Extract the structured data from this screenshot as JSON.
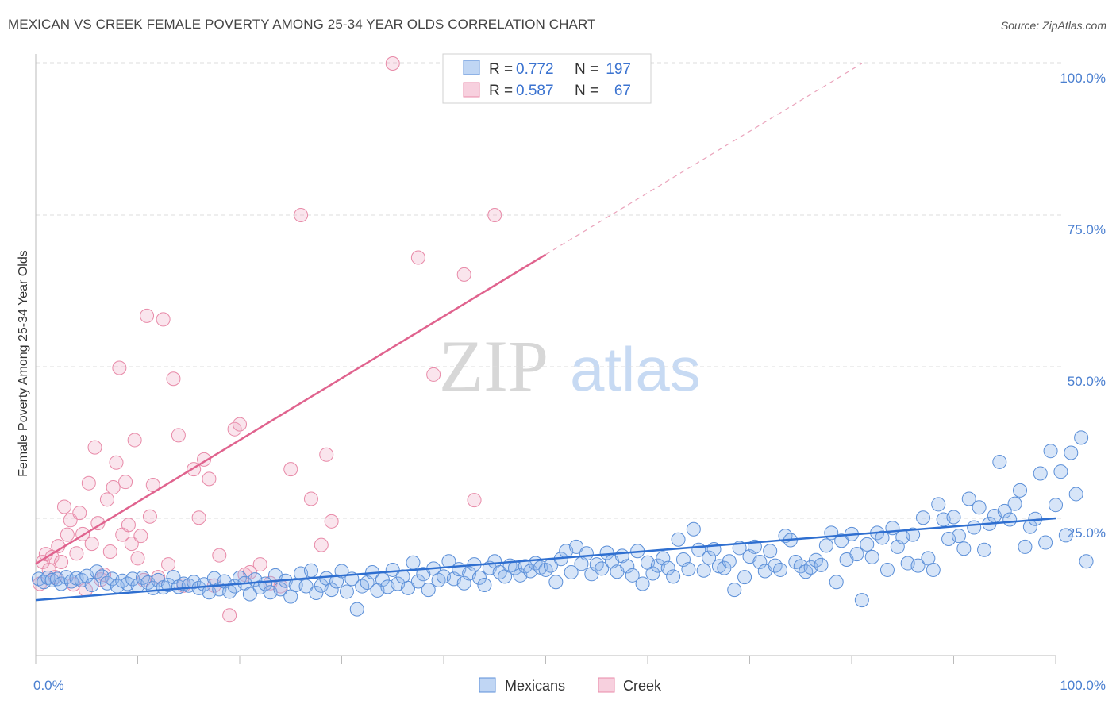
{
  "title": "MEXICAN VS CREEK FEMALE POVERTY AMONG 25-34 YEAR OLDS CORRELATION CHART",
  "source": "Source: ZipAtlas.com",
  "watermark": {
    "zip": "ZIP",
    "atlas": "atlas"
  },
  "colors": {
    "blue": "#5b8fd8",
    "blue_fill": "rgba(140,180,235,0.35)",
    "blue_line": "#2f6fd0",
    "pink": "#e88aa8",
    "pink_fill": "rgba(240,170,195,0.30)",
    "pink_line": "#e0638e",
    "tick_text": "#4a7fd0"
  },
  "legend": {
    "rows": [
      {
        "r_label": "R =",
        "r_value": "0.772",
        "n_label": "N =",
        "n_value": "197"
      },
      {
        "r_label": "R =",
        "r_value": "0.587",
        "n_label": "N =",
        "n_value": "67"
      }
    ]
  },
  "bottom_legend": [
    "Mexicans",
    "Creek"
  ],
  "chart_data": {
    "type": "scatter",
    "title": "MEXICAN VS CREEK FEMALE POVERTY AMONG 25-34 YEAR OLDS CORRELATION CHART",
    "xlabel": "",
    "ylabel": "Female Poverty Among 25-34 Year Olds",
    "xlim": [
      0,
      100
    ],
    "ylim": [
      0,
      102
    ],
    "x_tick_labels": [
      "0.0%",
      "100.0%"
    ],
    "y_tick_labels": [
      "25.0%",
      "50.0%",
      "75.0%",
      "100.0%"
    ],
    "y_ticks": [
      25,
      50,
      75,
      100
    ],
    "grid": "horizontal dashed",
    "legend_position": "top-center",
    "series": [
      {
        "name": "Mexicans",
        "color": "#5b8fd8",
        "trend": {
          "x": [
            0,
            100
          ],
          "y": [
            11.5,
            25
          ]
        },
        "points": [
          [
            0.3,
            15
          ],
          [
            0.8,
            14.5
          ],
          [
            1.2,
            15.2
          ],
          [
            1.6,
            14.8
          ],
          [
            2.1,
            15
          ],
          [
            2.5,
            14.2
          ],
          [
            3,
            15.3
          ],
          [
            3.5,
            14.6
          ],
          [
            4,
            15.1
          ],
          [
            4.5,
            14.8
          ],
          [
            5,
            15.5
          ],
          [
            5.5,
            14
          ],
          [
            6,
            16.2
          ],
          [
            6.5,
            15.4
          ],
          [
            7,
            14.3
          ],
          [
            7.5,
            15
          ],
          [
            8,
            13.8
          ],
          [
            8.5,
            14.7
          ],
          [
            9,
            14.2
          ],
          [
            9.5,
            15
          ],
          [
            10,
            13.9
          ],
          [
            10.5,
            15.2
          ],
          [
            11,
            14.4
          ],
          [
            11.5,
            13.5
          ],
          [
            12,
            14.8
          ],
          [
            12.5,
            13.6
          ],
          [
            13,
            14
          ],
          [
            13.5,
            15.3
          ],
          [
            14,
            13.7
          ],
          [
            14.5,
            14.2
          ],
          [
            15,
            13.9
          ],
          [
            15.5,
            14.5
          ],
          [
            16,
            13.5
          ],
          [
            16.5,
            14.1
          ],
          [
            17,
            12.8
          ],
          [
            17.5,
            15.1
          ],
          [
            18,
            13.3
          ],
          [
            18.5,
            14.6
          ],
          [
            19,
            12.9
          ],
          [
            19.5,
            13.8
          ],
          [
            20,
            15.2
          ],
          [
            20.5,
            14.3
          ],
          [
            21,
            12.5
          ],
          [
            21.5,
            14.9
          ],
          [
            22,
            13.6
          ],
          [
            22.5,
            14.2
          ],
          [
            23,
            12.8
          ],
          [
            23.5,
            15.6
          ],
          [
            24,
            13.3
          ],
          [
            24.5,
            14.7
          ],
          [
            25,
            12.1
          ],
          [
            25.5,
            14
          ],
          [
            26,
            15.9
          ],
          [
            26.5,
            13.8
          ],
          [
            27,
            16.4
          ],
          [
            27.5,
            12.7
          ],
          [
            28,
            13.9
          ],
          [
            28.5,
            15.1
          ],
          [
            29,
            13.2
          ],
          [
            29.5,
            14.6
          ],
          [
            30,
            16.3
          ],
          [
            30.5,
            12.9
          ],
          [
            31,
            15
          ],
          [
            31.5,
            10
          ],
          [
            32,
            13.8
          ],
          [
            32.5,
            14.4
          ],
          [
            33,
            16.1
          ],
          [
            33.5,
            13.1
          ],
          [
            34,
            14.9
          ],
          [
            34.5,
            13.7
          ],
          [
            35,
            16.5
          ],
          [
            35.5,
            14.2
          ],
          [
            36,
            15.4
          ],
          [
            36.5,
            13.5
          ],
          [
            37,
            17.7
          ],
          [
            37.5,
            14.6
          ],
          [
            38,
            15.8
          ],
          [
            38.5,
            13.2
          ],
          [
            39,
            16.7
          ],
          [
            39.5,
            14.8
          ],
          [
            40,
            15.4
          ],
          [
            40.5,
            17.9
          ],
          [
            41,
            15
          ],
          [
            41.5,
            16.6
          ],
          [
            42,
            14.3
          ],
          [
            42.5,
            15.9
          ],
          [
            43,
            17.4
          ],
          [
            43.5,
            15.2
          ],
          [
            44,
            14
          ],
          [
            44.5,
            16.8
          ],
          [
            45,
            17.9
          ],
          [
            45.5,
            16.1
          ],
          [
            46,
            15.4
          ],
          [
            46.5,
            17.2
          ],
          [
            47,
            16.8
          ],
          [
            47.5,
            15.6
          ],
          [
            48,
            17.1
          ],
          [
            48.5,
            16.3
          ],
          [
            49,
            17.6
          ],
          [
            49.5,
            16.9
          ],
          [
            50,
            16.5
          ],
          [
            50.5,
            17.2
          ],
          [
            51,
            14.5
          ],
          [
            51.5,
            18.3
          ],
          [
            52,
            19.6
          ],
          [
            52.5,
            16.1
          ],
          [
            53,
            20.3
          ],
          [
            53.5,
            17.5
          ],
          [
            54,
            19.2
          ],
          [
            54.5,
            15.8
          ],
          [
            55,
            17.4
          ],
          [
            55.5,
            16.7
          ],
          [
            56,
            19.3
          ],
          [
            56.5,
            17.9
          ],
          [
            57,
            16.2
          ],
          [
            57.5,
            18.8
          ],
          [
            58,
            17.1
          ],
          [
            58.5,
            15.6
          ],
          [
            59,
            19.6
          ],
          [
            59.5,
            14.2
          ],
          [
            60,
            17.7
          ],
          [
            60.5,
            15.9
          ],
          [
            61,
            17.2
          ],
          [
            61.5,
            18.4
          ],
          [
            62,
            16.8
          ],
          [
            62.5,
            15.4
          ],
          [
            63,
            21.5
          ],
          [
            63.5,
            18.2
          ],
          [
            64,
            16.6
          ],
          [
            64.5,
            23.2
          ],
          [
            65,
            19.8
          ],
          [
            65.5,
            16.4
          ],
          [
            66,
            18.5
          ],
          [
            66.5,
            19.9
          ],
          [
            67,
            17.1
          ],
          [
            67.5,
            16.8
          ],
          [
            68,
            17.9
          ],
          [
            68.5,
            13.2
          ],
          [
            69,
            20.1
          ],
          [
            69.5,
            15.3
          ],
          [
            70,
            18.7
          ],
          [
            70.5,
            20.3
          ],
          [
            71,
            17.8
          ],
          [
            71.5,
            16.3
          ],
          [
            72,
            19.6
          ],
          [
            72.5,
            17.2
          ],
          [
            73,
            16.5
          ],
          [
            73.5,
            22.1
          ],
          [
            74,
            21.4
          ],
          [
            74.5,
            17.8
          ],
          [
            75,
            17.1
          ],
          [
            75.5,
            16.2
          ],
          [
            76,
            16.9
          ],
          [
            76.5,
            18.1
          ],
          [
            77,
            17.3
          ],
          [
            77.5,
            20.5
          ],
          [
            78,
            22.6
          ],
          [
            78.5,
            14.5
          ],
          [
            79,
            21.3
          ],
          [
            79.5,
            18.2
          ],
          [
            80,
            22.4
          ],
          [
            80.5,
            19.1
          ],
          [
            81,
            11.5
          ],
          [
            81.5,
            20.7
          ],
          [
            82,
            18.6
          ],
          [
            82.5,
            22.6
          ],
          [
            83,
            21.8
          ],
          [
            83.5,
            16.5
          ],
          [
            84,
            23.4
          ],
          [
            84.5,
            20.3
          ],
          [
            85,
            21.9
          ],
          [
            85.5,
            17.6
          ],
          [
            86,
            22.3
          ],
          [
            86.5,
            17.2
          ],
          [
            87,
            25.1
          ],
          [
            87.5,
            18.4
          ],
          [
            88,
            16.5
          ],
          [
            88.5,
            27.3
          ],
          [
            89,
            24.8
          ],
          [
            89.5,
            21.6
          ],
          [
            90,
            25.2
          ],
          [
            90.5,
            22.1
          ],
          [
            91,
            20
          ],
          [
            91.5,
            28.2
          ],
          [
            92,
            23.5
          ],
          [
            92.5,
            26.8
          ],
          [
            93,
            19.8
          ],
          [
            93.5,
            24.1
          ],
          [
            94,
            25.4
          ],
          [
            94.5,
            34.3
          ],
          [
            95,
            26.2
          ],
          [
            95.5,
            24.8
          ],
          [
            96,
            27.4
          ],
          [
            96.5,
            29.6
          ],
          [
            97,
            20.3
          ],
          [
            97.5,
            23.6
          ],
          [
            98,
            24.9
          ],
          [
            98.5,
            32.4
          ],
          [
            99,
            21
          ],
          [
            99.5,
            36.1
          ],
          [
            100,
            27.2
          ],
          [
            100.5,
            32.7
          ],
          [
            101,
            22.2
          ],
          [
            101.5,
            35.8
          ],
          [
            102,
            29
          ],
          [
            102.5,
            38.3
          ],
          [
            103,
            17.9
          ]
        ]
      },
      {
        "name": "Creek",
        "color": "#e88aa8",
        "trend": {
          "x": [
            0,
            50
          ],
          "y": [
            17.5,
            68.5
          ]
        },
        "trend_extension": {
          "x": [
            50,
            81
          ],
          "y": [
            68.5,
            100
          ]
        },
        "points": [
          [
            0.4,
            14.2
          ],
          [
            0.7,
            17.8
          ],
          [
            1,
            19.1
          ],
          [
            1.3,
            16.5
          ],
          [
            1.6,
            18.6
          ],
          [
            1.9,
            15.3
          ],
          [
            2.2,
            20.4
          ],
          [
            2.5,
            17.8
          ],
          [
            2.8,
            26.9
          ],
          [
            3.1,
            22.3
          ],
          [
            3.4,
            24.7
          ],
          [
            3.7,
            14.1
          ],
          [
            4,
            19.2
          ],
          [
            4.3,
            25.9
          ],
          [
            4.6,
            22.4
          ],
          [
            4.9,
            13.2
          ],
          [
            5.2,
            30.8
          ],
          [
            5.5,
            20.8
          ],
          [
            5.8,
            36.7
          ],
          [
            6.1,
            24.2
          ],
          [
            6.4,
            14.9
          ],
          [
            6.7,
            15.7
          ],
          [
            7,
            28.1
          ],
          [
            7.3,
            19.5
          ],
          [
            7.6,
            30.1
          ],
          [
            7.9,
            34.2
          ],
          [
            8.2,
            49.8
          ],
          [
            8.5,
            22.3
          ],
          [
            8.8,
            31
          ],
          [
            9.1,
            23.9
          ],
          [
            9.4,
            20.8
          ],
          [
            9.7,
            37.9
          ],
          [
            10,
            18.4
          ],
          [
            10.3,
            22.1
          ],
          [
            10.6,
            14.8
          ],
          [
            10.9,
            58.4
          ],
          [
            11.2,
            25.3
          ],
          [
            11.5,
            30.5
          ],
          [
            12,
            15.3
          ],
          [
            12.5,
            57.8
          ],
          [
            13,
            17.4
          ],
          [
            13.5,
            48
          ],
          [
            14,
            38.7
          ],
          [
            14.5,
            13.9
          ],
          [
            15.5,
            33.1
          ],
          [
            16,
            25.1
          ],
          [
            16.5,
            34.7
          ],
          [
            17,
            31.5
          ],
          [
            17.5,
            13.9
          ],
          [
            18,
            18.9
          ],
          [
            19,
            9
          ],
          [
            19.5,
            39.7
          ],
          [
            20,
            40.5
          ],
          [
            20.5,
            15.7
          ],
          [
            21,
            16.1
          ],
          [
            22,
            17.4
          ],
          [
            23,
            14.3
          ],
          [
            24,
            13.8
          ],
          [
            25,
            33.1
          ],
          [
            26,
            75
          ],
          [
            27,
            28.2
          ],
          [
            28,
            20.6
          ],
          [
            28.5,
            35.5
          ],
          [
            29,
            24.5
          ],
          [
            35,
            100
          ],
          [
            37.5,
            68
          ],
          [
            39,
            48.7
          ],
          [
            42,
            65.2
          ],
          [
            43,
            28
          ],
          [
            45,
            75
          ]
        ]
      }
    ]
  }
}
